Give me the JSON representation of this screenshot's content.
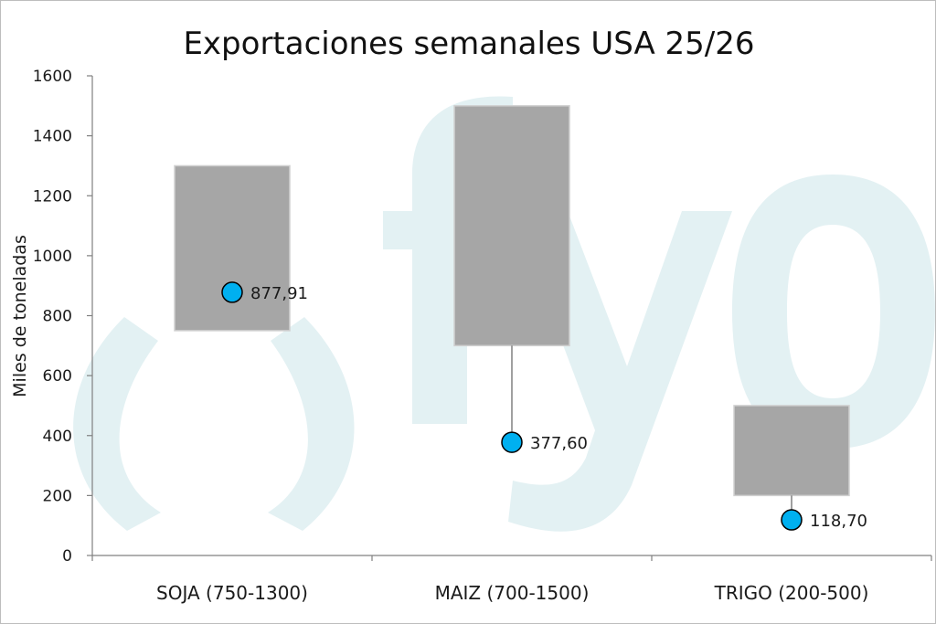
{
  "chart_data": {
    "type": "box",
    "title": "Exportaciones semanales USA 25/26",
    "ylabel": "Miles de toneladas",
    "xlabel": "",
    "ylim": [
      0,
      1600
    ],
    "yticks": [
      0,
      200,
      400,
      600,
      800,
      1000,
      1200,
      1400,
      1600
    ],
    "categories": [
      "SOJA (750-1300)",
      "MAIZ (700-1500)",
      "TRIGO (200-500)"
    ],
    "ranges": [
      {
        "low": 750,
        "high": 1300
      },
      {
        "low": 700,
        "high": 1500
      },
      {
        "low": 200,
        "high": 500
      }
    ],
    "values": [
      877.91,
      377.6,
      118.7
    ],
    "value_labels": [
      "877,91",
      "377,60",
      "118,70"
    ],
    "grid": false,
    "watermark": "( fyo",
    "colors": {
      "range_box": "#a6a6a6",
      "range_box_border": "#d0d0d0",
      "marker": "#00b0f0",
      "marker_border": "#000000",
      "axis": "#808080",
      "watermark": "#e3f1f3"
    }
  }
}
